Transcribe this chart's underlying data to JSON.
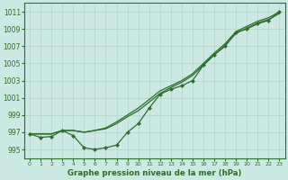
{
  "background_color": "#cbe8e3",
  "grid_color": "#b0d4cc",
  "line_color": "#2d6e2d",
  "title": "Graphe pression niveau de la mer (hPa)",
  "xlim": [
    -0.5,
    23.5
  ],
  "ylim": [
    994.0,
    1012.0
  ],
  "yticks": [
    995,
    997,
    999,
    1001,
    1003,
    1005,
    1007,
    1009,
    1011
  ],
  "xticks": [
    0,
    1,
    2,
    3,
    4,
    5,
    6,
    7,
    8,
    9,
    10,
    11,
    12,
    13,
    14,
    15,
    16,
    17,
    18,
    19,
    20,
    21,
    22,
    23
  ],
  "wavy": [
    996.8,
    996.4,
    996.5,
    997.2,
    996.6,
    995.2,
    995.0,
    995.2,
    995.5,
    997.0,
    998.0,
    999.8,
    1001.4,
    1002.0,
    1002.4,
    1003.0,
    1004.8,
    1006.0,
    1007.0,
    1008.6,
    1009.0,
    1009.6,
    1010.0,
    1011.0
  ],
  "straight1": [
    996.8,
    996.8,
    996.8,
    997.2,
    997.2,
    997.0,
    997.2,
    997.5,
    998.2,
    999.0,
    999.8,
    1000.8,
    1001.8,
    1002.4,
    1003.0,
    1003.8,
    1005.0,
    1006.2,
    1007.3,
    1008.7,
    1009.3,
    1009.9,
    1010.3,
    1011.0
  ],
  "straight2": [
    996.8,
    996.8,
    996.8,
    997.2,
    997.2,
    997.0,
    997.2,
    997.4,
    998.0,
    998.8,
    999.5,
    1000.5,
    1001.5,
    1002.2,
    1002.8,
    1003.6,
    1004.8,
    1006.0,
    1007.1,
    1008.5,
    1009.1,
    1009.7,
    1010.1,
    1010.8
  ],
  "ytick_fontsize": 5.5,
  "xtick_fontsize": 4.5,
  "title_fontsize": 6.2
}
